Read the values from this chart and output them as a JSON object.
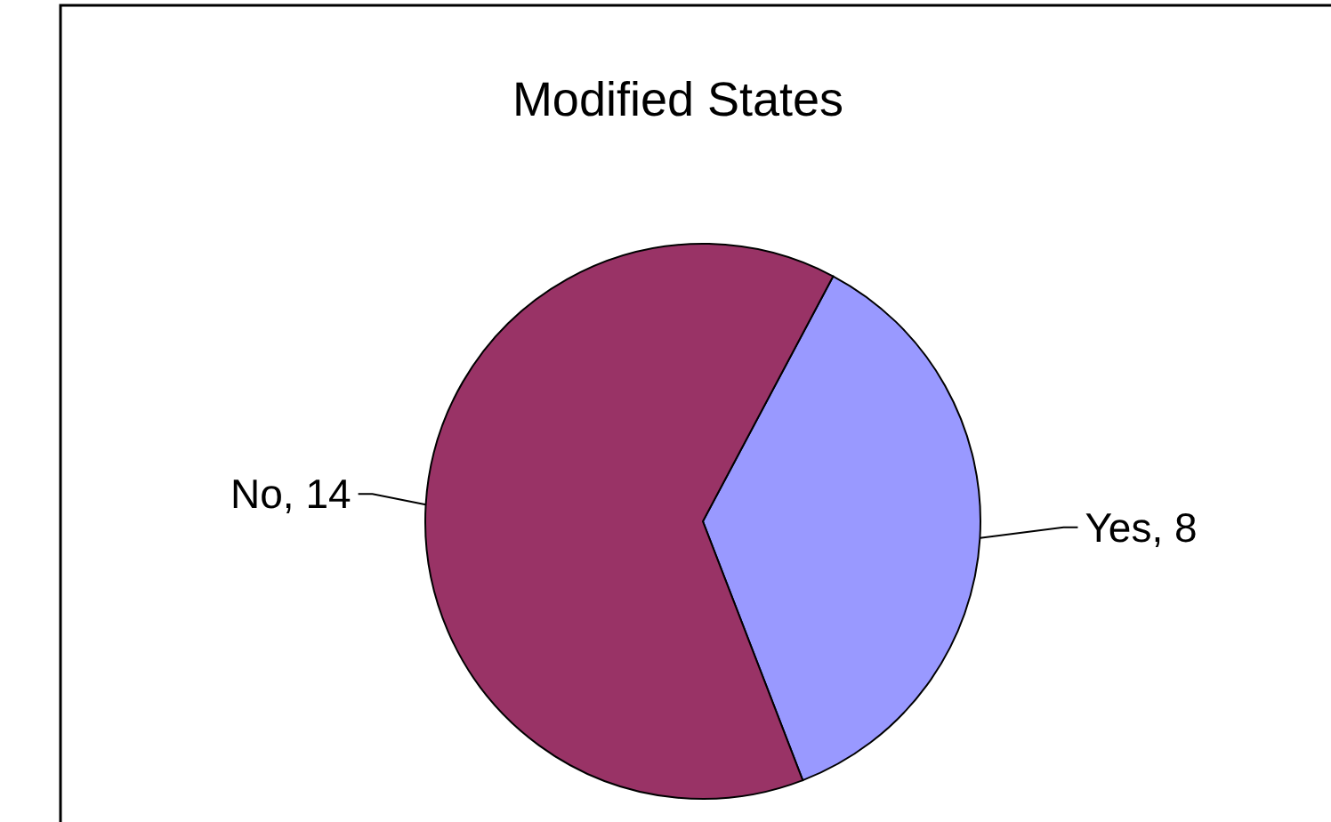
{
  "chart_data": {
    "type": "pie",
    "title": "Modified States",
    "categories": [
      "Yes",
      "No"
    ],
    "values": [
      8,
      14
    ],
    "value_labels": [
      ", 8",
      ", 14"
    ],
    "colors": [
      "#9999ff",
      "#993366"
    ],
    "legend": false
  }
}
